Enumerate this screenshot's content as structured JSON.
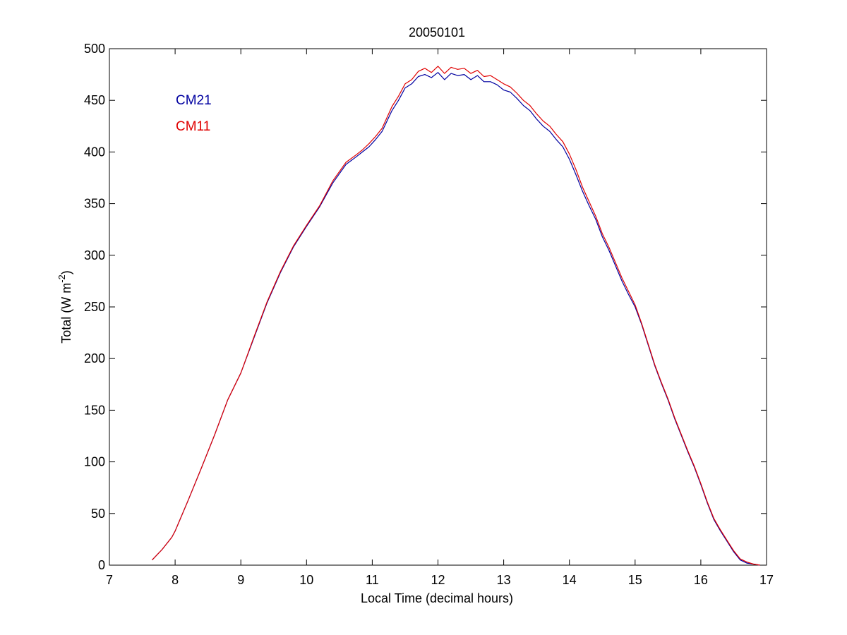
{
  "chart_data": {
    "type": "line",
    "title": "20050101",
    "xlabel": "Local Time (decimal hours)",
    "ylabel": {
      "prefix": "Total (W m",
      "superscript": "-2",
      "suffix": ")"
    },
    "xlim": [
      7,
      17
    ],
    "ylim": [
      0,
      500
    ],
    "xticks": [
      7,
      8,
      9,
      10,
      11,
      12,
      13,
      14,
      15,
      16,
      17
    ],
    "yticks": [
      0,
      50,
      100,
      150,
      200,
      250,
      300,
      350,
      400,
      450,
      500
    ],
    "grid": false,
    "legend": {
      "placement": "top-left"
    },
    "series": [
      {
        "name": "CM21",
        "color": "#0000a0",
        "x": [
          7.65,
          7.8,
          7.95,
          8.0,
          8.2,
          8.4,
          8.6,
          8.8,
          9.0,
          9.2,
          9.4,
          9.6,
          9.8,
          10.0,
          10.2,
          10.4,
          10.6,
          10.75,
          10.85,
          10.95,
          11.05,
          11.15,
          11.3,
          11.4,
          11.5,
          11.6,
          11.7,
          11.8,
          11.9,
          12.0,
          12.1,
          12.2,
          12.3,
          12.4,
          12.5,
          12.6,
          12.7,
          12.8,
          12.9,
          13.0,
          13.1,
          13.2,
          13.3,
          13.4,
          13.5,
          13.6,
          13.7,
          13.8,
          13.9,
          14.0,
          14.1,
          14.2,
          14.3,
          14.4,
          14.5,
          14.6,
          14.7,
          14.8,
          14.9,
          15.0,
          15.1,
          15.2,
          15.3,
          15.4,
          15.5,
          15.6,
          15.7,
          15.8,
          15.9,
          16.0,
          16.1,
          16.2,
          16.3,
          16.4,
          16.5,
          16.6,
          16.7,
          16.8,
          16.9
        ],
        "values": [
          5,
          15,
          27,
          33,
          63,
          94,
          126,
          160,
          186,
          220,
          254,
          283,
          308,
          328,
          347,
          370,
          388,
          395,
          400,
          405,
          412,
          420,
          440,
          450,
          462,
          466,
          473,
          475,
          472,
          477,
          470,
          476,
          474,
          475,
          470,
          474,
          468,
          468,
          465,
          460,
          458,
          452,
          445,
          440,
          432,
          425,
          420,
          412,
          405,
          393,
          378,
          362,
          348,
          335,
          318,
          305,
          290,
          275,
          262,
          250,
          233,
          213,
          193,
          176,
          160,
          142,
          126,
          110,
          95,
          78,
          60,
          44,
          33,
          23,
          13,
          5,
          2,
          1,
          0
        ]
      },
      {
        "name": "CM11",
        "color": "#e00000",
        "x": [
          7.65,
          7.8,
          7.95,
          8.0,
          8.2,
          8.4,
          8.6,
          8.8,
          9.0,
          9.2,
          9.4,
          9.6,
          9.8,
          10.0,
          10.2,
          10.4,
          10.6,
          10.75,
          10.85,
          10.95,
          11.05,
          11.15,
          11.3,
          11.4,
          11.5,
          11.6,
          11.7,
          11.8,
          11.9,
          12.0,
          12.1,
          12.2,
          12.3,
          12.4,
          12.5,
          12.6,
          12.7,
          12.8,
          12.9,
          13.0,
          13.1,
          13.2,
          13.3,
          13.4,
          13.5,
          13.6,
          13.7,
          13.8,
          13.9,
          14.0,
          14.1,
          14.2,
          14.3,
          14.4,
          14.5,
          14.6,
          14.7,
          14.8,
          14.9,
          15.0,
          15.1,
          15.2,
          15.3,
          15.4,
          15.5,
          15.6,
          15.7,
          15.8,
          15.9,
          16.0,
          16.1,
          16.2,
          16.3,
          16.4,
          16.5,
          16.6,
          16.7,
          16.8,
          16.9
        ],
        "values": [
          5,
          15,
          27,
          33,
          63,
          94,
          126,
          160,
          186,
          221,
          255,
          284,
          309,
          329,
          348,
          372,
          390,
          397,
          402,
          408,
          415,
          423,
          444,
          454,
          466,
          470,
          478,
          481,
          477,
          483,
          476,
          482,
          480,
          481,
          476,
          479,
          473,
          474,
          470,
          466,
          463,
          457,
          450,
          445,
          437,
          430,
          425,
          417,
          410,
          398,
          383,
          366,
          352,
          338,
          321,
          308,
          293,
          278,
          265,
          252,
          234,
          214,
          194,
          177,
          161,
          143,
          127,
          111,
          96,
          79,
          61,
          45,
          34,
          24,
          14,
          6,
          3,
          1,
          0
        ]
      }
    ]
  }
}
